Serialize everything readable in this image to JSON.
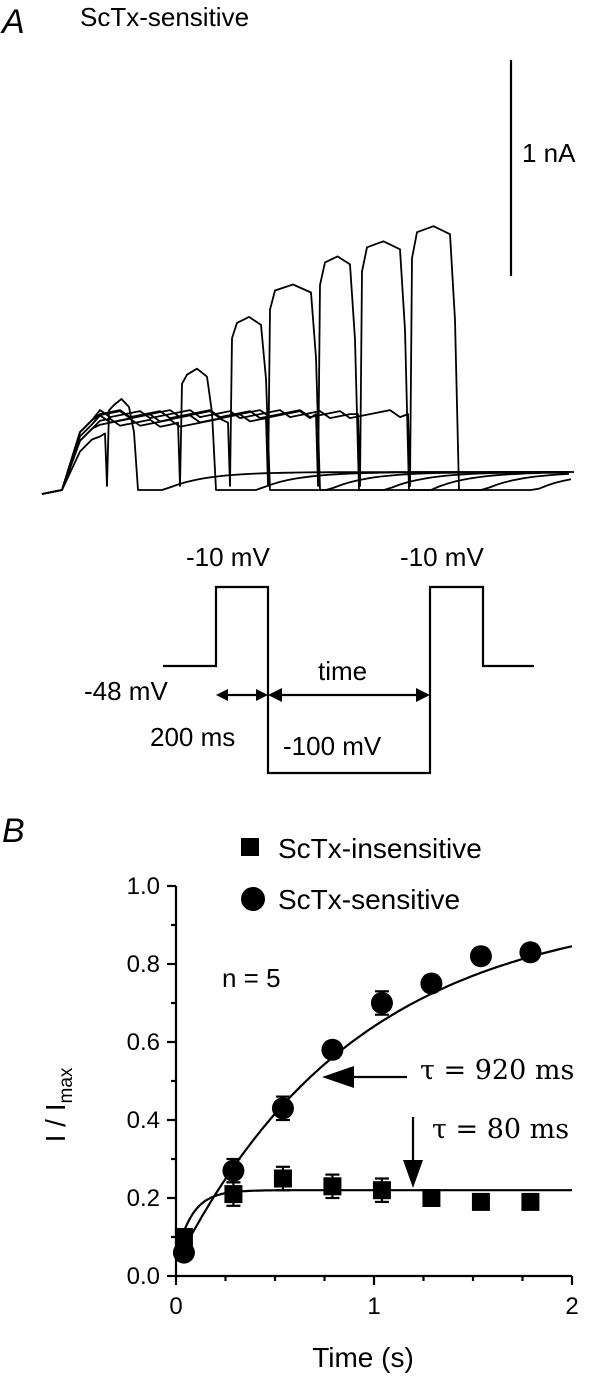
{
  "panel_a": {
    "letter": "A",
    "title": "ScTx-sensitive",
    "scalebar_label": "1 nA",
    "protocol": {
      "step1_label": "-10 mV",
      "step2_label": "-10 mV",
      "holding_label": "-48 mV",
      "prepulse_label": "200 ms",
      "interval_label": "time",
      "recovery_label": "-100 mV"
    }
  },
  "panel_b": {
    "letter": "B",
    "annotation_n": "n = 5",
    "tau_slow": "τ = 920 ms",
    "tau_fast": "τ = 80 ms"
  },
  "chart_data": [
    {
      "type": "line",
      "description_source": "panel A current traces",
      "title": "ScTx-sensitive",
      "scale_bar": {
        "value": 1,
        "unit": "nA",
        "label": "1 nA"
      },
      "series": [
        {
          "values": [
            0.28,
            0.44
          ]
        },
        {
          "values": [
            0.33,
            0.58
          ]
        },
        {
          "values": [
            0.33,
            0.82
          ]
        },
        {
          "values": [
            0.35,
            0.97
          ]
        },
        {
          "values": [
            0.37,
            1.1
          ]
        },
        {
          "values": [
            0.37,
            1.17
          ]
        },
        {
          "values": [
            0.37,
            1.24
          ]
        }
      ]
    },
    {
      "type": "scatter",
      "title": "",
      "xlabel": "Time (s)",
      "ylabel": "I / I",
      "ylabel_sub": "max",
      "xlim": [
        0,
        2
      ],
      "ylim": [
        0,
        1.0
      ],
      "xticks": [
        "0",
        "1",
        "2"
      ],
      "yticks": [
        "0.0",
        "0.2",
        "0.4",
        "0.6",
        "0.8",
        "1.0"
      ],
      "legend_position": "top-right",
      "series": [
        {
          "name": "ScTx-insensitive",
          "marker": "square",
          "x": [
            0.04,
            0.29,
            0.54,
            0.79,
            1.04,
            1.29,
            1.54,
            1.79
          ],
          "y": [
            0.1,
            0.21,
            0.25,
            0.23,
            0.22,
            0.2,
            0.19,
            0.19
          ],
          "err": [
            0.02,
            0.03,
            0.03,
            0.03,
            0.03,
            0.01,
            0.01,
            0.01
          ],
          "fit_tau_ms": 80,
          "fit_plateau": 0.22,
          "fit_y0": 0.1
        },
        {
          "name": "ScTx-sensitive",
          "marker": "circle",
          "x": [
            0.04,
            0.29,
            0.54,
            0.79,
            1.04,
            1.29,
            1.54,
            1.79
          ],
          "y": [
            0.06,
            0.27,
            0.43,
            0.58,
            0.7,
            0.75,
            0.82,
            0.83
          ],
          "err": [
            0.01,
            0.03,
            0.03,
            0.02,
            0.03,
            0.02,
            0.02,
            0.02
          ],
          "fit_tau_ms": 920,
          "fit_plateau": 0.95,
          "fit_y0": 0.06
        }
      ]
    }
  ]
}
